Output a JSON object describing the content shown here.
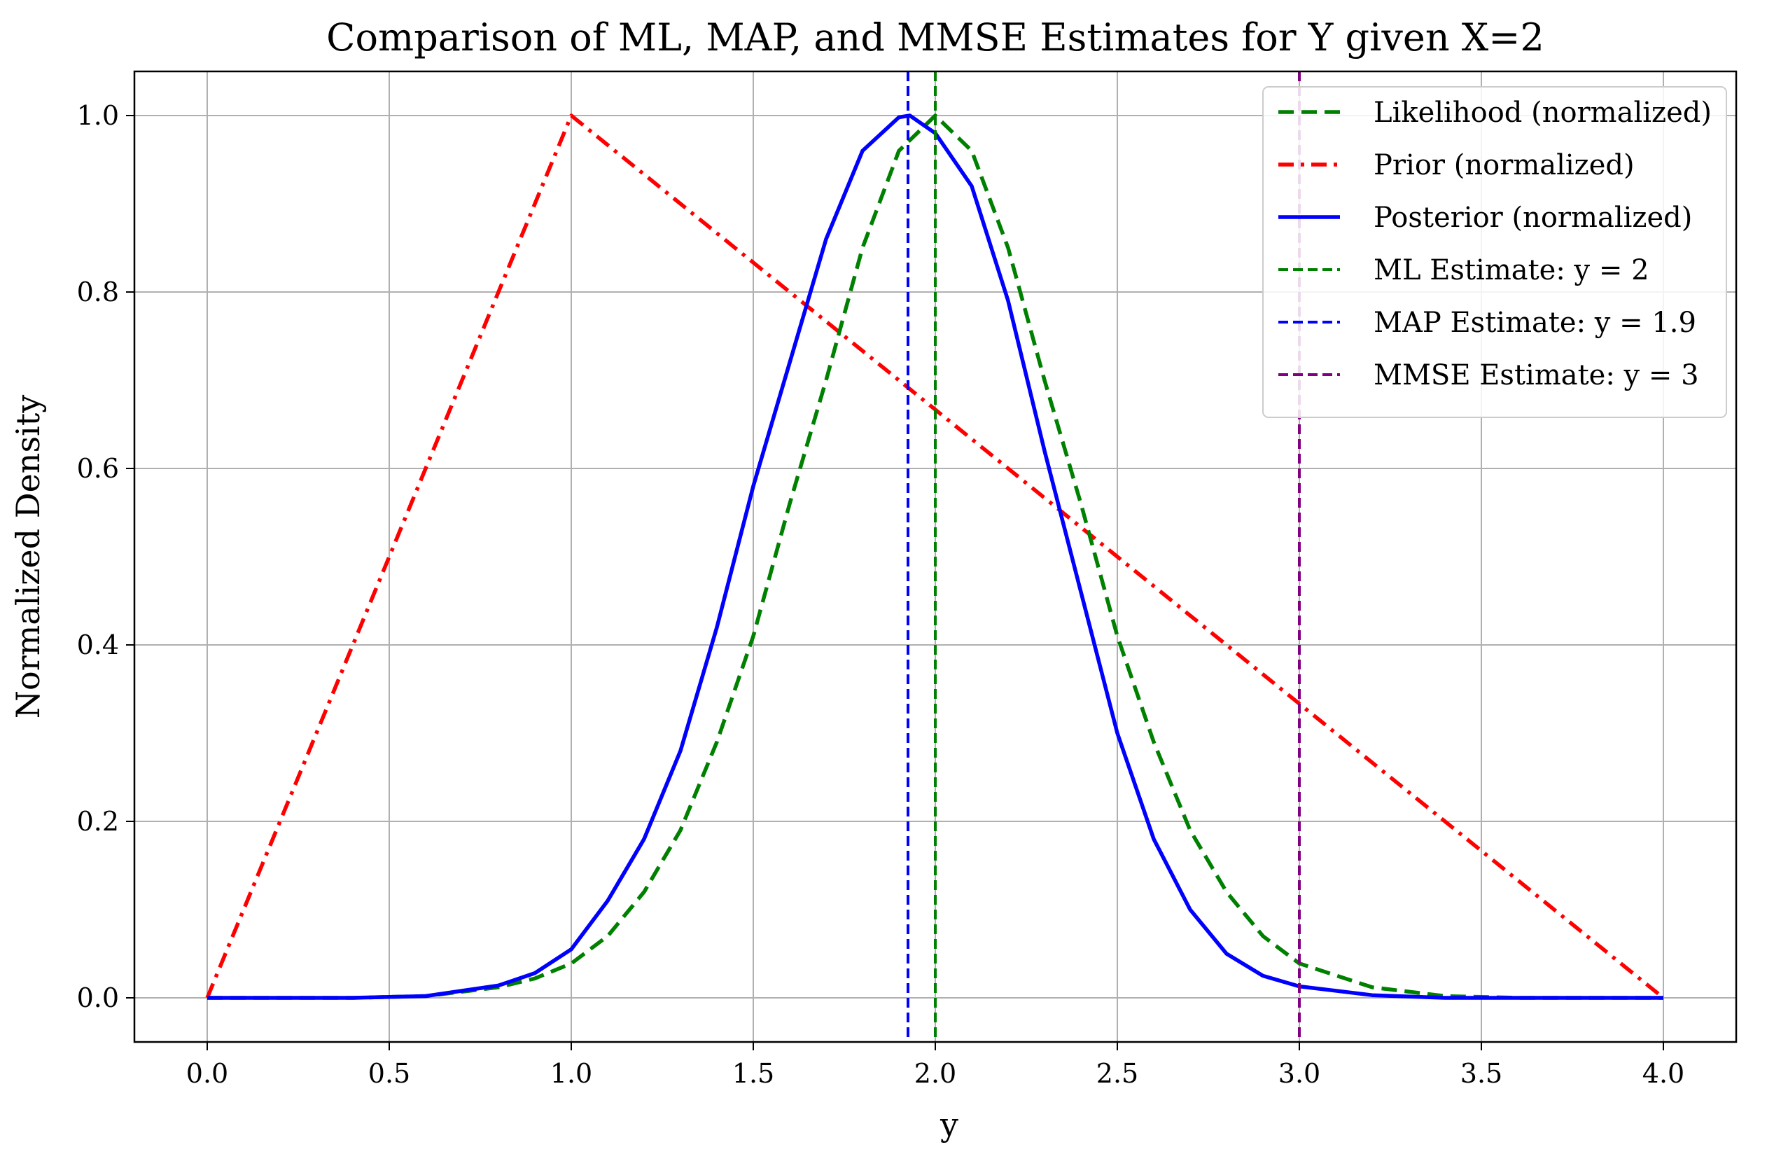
{
  "chart_data": {
    "type": "line",
    "title": "Comparison of ML, MAP, and MMSE Estimates for Y given X=2",
    "xlabel": "y",
    "ylabel": "Normalized Density",
    "xlim": [
      -0.2,
      4.2
    ],
    "ylim": [
      -0.05,
      1.05
    ],
    "xticks": [
      "0.0",
      "0.5",
      "1.0",
      "1.5",
      "2.0",
      "2.5",
      "3.0",
      "3.5",
      "4.0"
    ],
    "xtick_values": [
      0,
      0.5,
      1,
      1.5,
      2,
      2.5,
      3,
      3.5,
      4
    ],
    "yticks": [
      "0.0",
      "0.2",
      "0.4",
      "0.6",
      "0.8",
      "1.0"
    ],
    "ytick_values": [
      0,
      0.2,
      0.4,
      0.6,
      0.8,
      1.0
    ],
    "grid": true,
    "legend_position": "top-right",
    "series": [
      {
        "name": "Likelihood (normalized)",
        "color": "#008000",
        "style": "dashed",
        "x": [
          0,
          0.2,
          0.4,
          0.6,
          0.8,
          0.9,
          1.0,
          1.1,
          1.2,
          1.3,
          1.4,
          1.5,
          1.6,
          1.7,
          1.8,
          1.9,
          2.0,
          2.1,
          2.2,
          2.3,
          2.4,
          2.5,
          2.6,
          2.7,
          2.8,
          2.9,
          3.0,
          3.2,
          3.4,
          3.6,
          3.8,
          4.0
        ],
        "y": [
          0.0,
          0.0,
          0.0,
          0.002,
          0.012,
          0.022,
          0.039,
          0.07,
          0.12,
          0.19,
          0.29,
          0.41,
          0.56,
          0.7,
          0.85,
          0.96,
          1.0,
          0.96,
          0.85,
          0.7,
          0.56,
          0.41,
          0.29,
          0.19,
          0.12,
          0.07,
          0.039,
          0.012,
          0.002,
          0.0,
          0.0,
          0.0
        ]
      },
      {
        "name": "Prior (normalized)",
        "color": "#ff0000",
        "style": "dashdot",
        "x": [
          0,
          1,
          4
        ],
        "y": [
          0,
          1,
          0
        ]
      },
      {
        "name": "Posterior (normalized)",
        "color": "#0000ff",
        "style": "solid",
        "x": [
          0,
          0.2,
          0.4,
          0.6,
          0.8,
          0.9,
          1.0,
          1.1,
          1.2,
          1.3,
          1.4,
          1.5,
          1.6,
          1.7,
          1.8,
          1.9,
          1.93,
          2.0,
          2.1,
          2.2,
          2.3,
          2.4,
          2.5,
          2.6,
          2.7,
          2.8,
          2.9,
          3.0,
          3.2,
          3.4,
          3.6,
          3.8,
          4.0
        ],
        "y": [
          0.0,
          0.0,
          0.0,
          0.002,
          0.014,
          0.028,
          0.055,
          0.11,
          0.18,
          0.28,
          0.42,
          0.58,
          0.72,
          0.86,
          0.96,
          0.998,
          1.0,
          0.98,
          0.92,
          0.79,
          0.62,
          0.46,
          0.3,
          0.18,
          0.1,
          0.05,
          0.025,
          0.013,
          0.003,
          0.0,
          0.0,
          0.0,
          0.0
        ]
      }
    ],
    "vlines": [
      {
        "name": "ML Estimate: y = 2",
        "x": 2.0,
        "color": "#008000"
      },
      {
        "name": "MAP Estimate: y = 1.9",
        "x": 1.925,
        "color": "#0000ff"
      },
      {
        "name": "MMSE Estimate: y = 3",
        "x": 3.0,
        "color": "#800080"
      }
    ]
  }
}
